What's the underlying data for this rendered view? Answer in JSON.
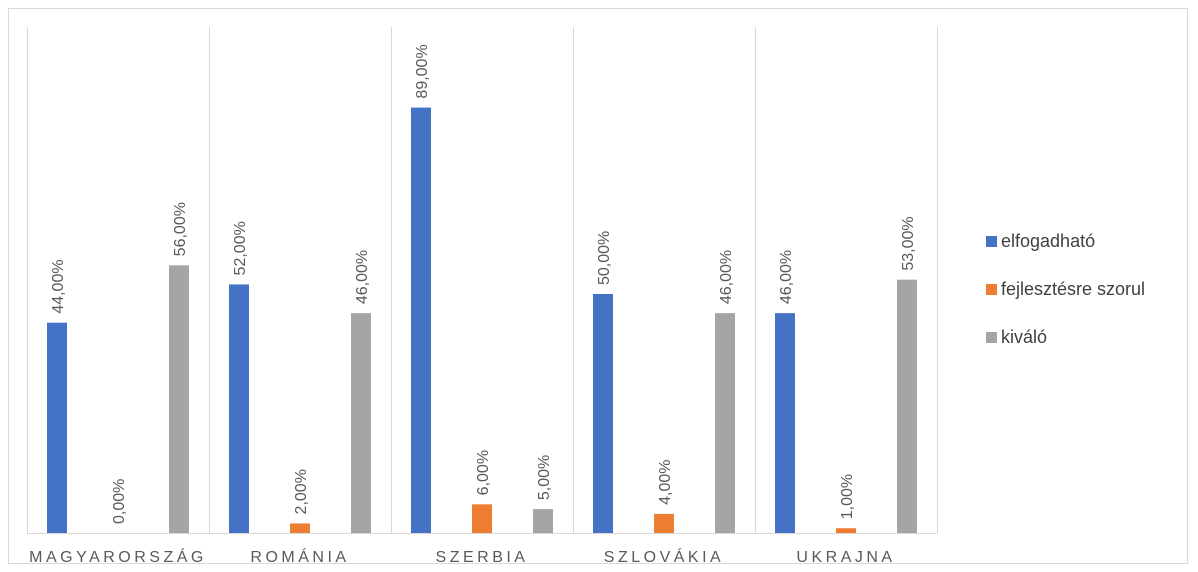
{
  "chart_data": {
    "type": "bar",
    "categories": [
      "MAGYARORSZÁG",
      "ROMÁNIA",
      "SZERBIA",
      "SZLOVÁKIA",
      "UKRAJNA"
    ],
    "series": [
      {
        "name": "elfogadható",
        "values": [
          44,
          52,
          89,
          50,
          46
        ],
        "labels": [
          "44,00%",
          "52,00%",
          "89,00%",
          "50,00%",
          "46,00%"
        ],
        "color": "#4472c4"
      },
      {
        "name": "fejlesztésre szorul",
        "values": [
          0,
          2,
          6,
          4,
          1
        ],
        "labels": [
          "0,00%",
          "2,00%",
          "6,00%",
          "4,00%",
          "1,00%"
        ],
        "color": "#ed7d31"
      },
      {
        "name": "kiváló",
        "values": [
          56,
          46,
          5,
          46,
          53
        ],
        "labels": [
          "56,00%",
          "46,00%",
          "5,00%",
          "46,00%",
          "53,00%"
        ],
        "color": "#a5a5a5"
      }
    ],
    "ylim": [
      0,
      100
    ],
    "grid": "vertical category separators",
    "legend_position": "right"
  }
}
